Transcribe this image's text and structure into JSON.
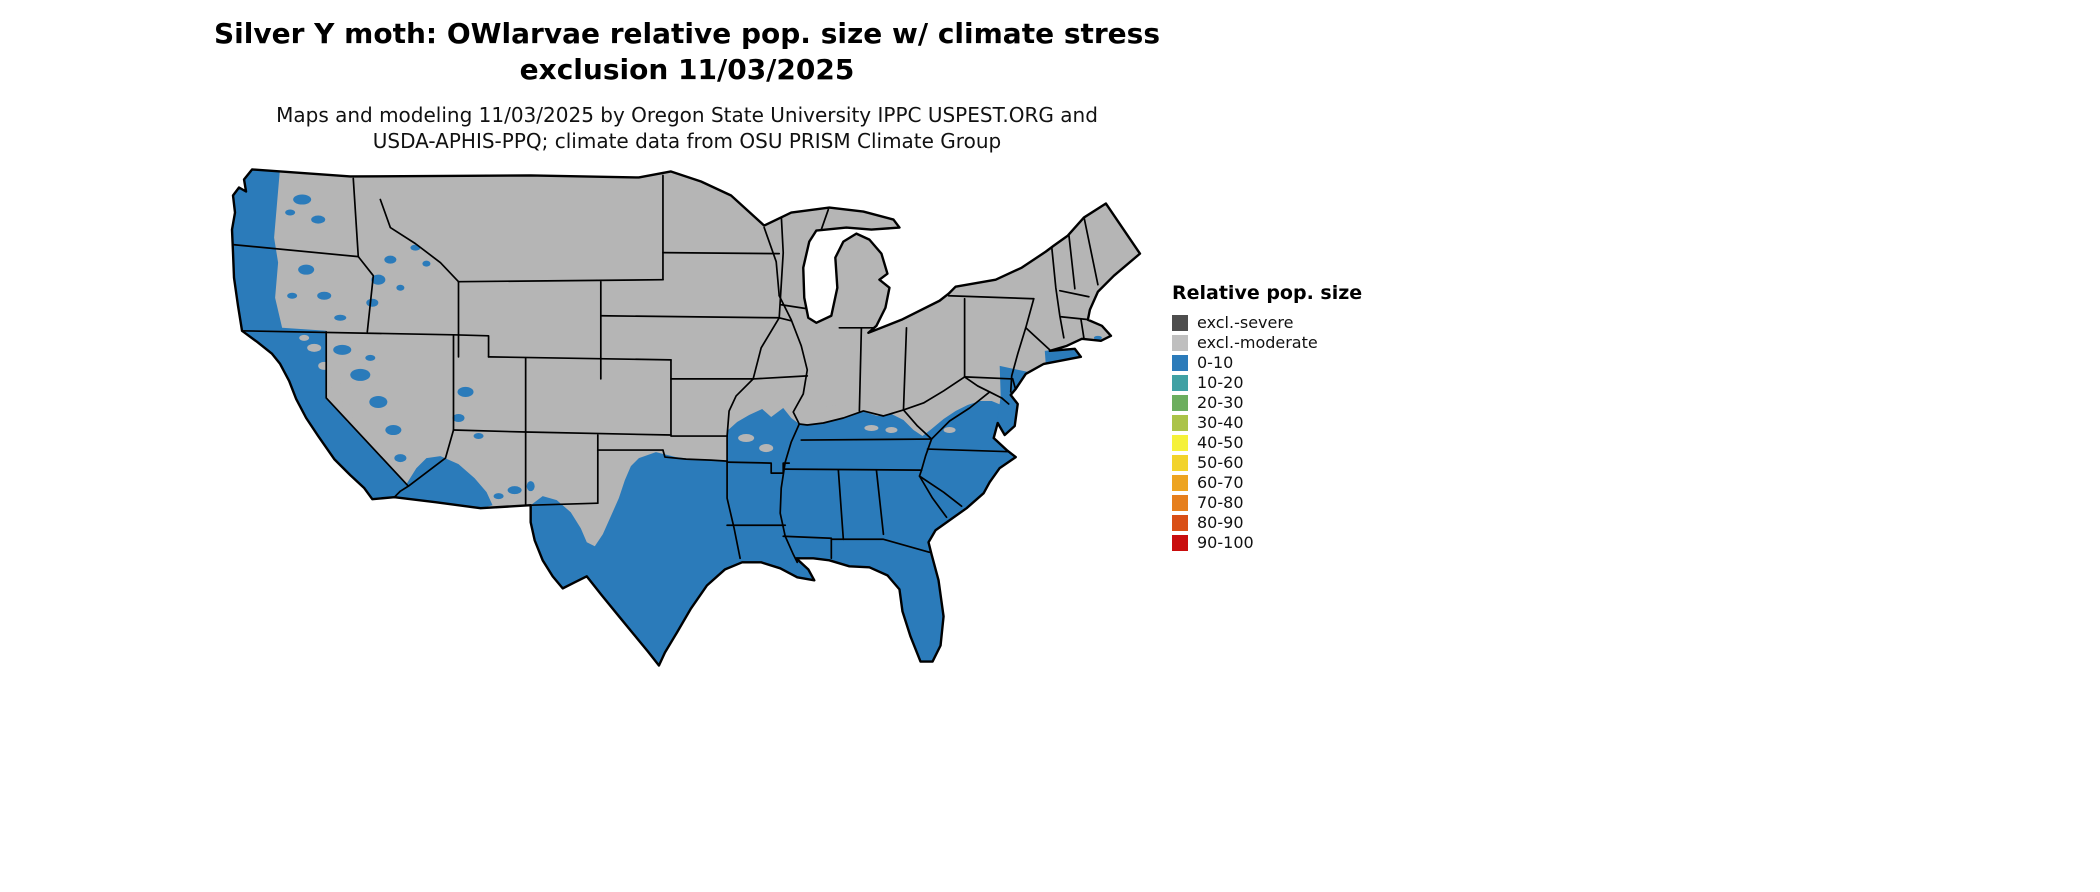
{
  "header": {
    "title_line1": "Silver Y moth: OWlarvae relative pop. size w/ climate stress",
    "title_line2": "exclusion 11/03/2025",
    "subtitle_line1": "Maps and modeling 11/03/2025 by Oregon State University IPPC USPEST.ORG and",
    "subtitle_line2": "USDA-APHIS-PPQ; climate data from OSU PRISM Climate Group"
  },
  "legend": {
    "title": "Relative pop. size",
    "items": [
      {
        "label": "excl.-severe",
        "color": "#4d4d4d"
      },
      {
        "label": "excl.-moderate",
        "color": "#bfbfbf"
      },
      {
        "label": "0-10",
        "color": "#2b7bba"
      },
      {
        "label": "10-20",
        "color": "#40a1a4"
      },
      {
        "label": "20-30",
        "color": "#6cae5e"
      },
      {
        "label": "30-40",
        "color": "#abc348"
      },
      {
        "label": "40-50",
        "color": "#f5f13a"
      },
      {
        "label": "50-60",
        "color": "#f2d32b"
      },
      {
        "label": "60-70",
        "color": "#eda421"
      },
      {
        "label": "70-80",
        "color": "#e67f1d"
      },
      {
        "label": "80-90",
        "color": "#d94f16"
      },
      {
        "label": "90-100",
        "color": "#c90d0d"
      }
    ]
  },
  "map": {
    "colors": {
      "excluded_moderate": "#b5b5b5",
      "population_0_10": "#2b7bba",
      "state_border": "#000000",
      "water": "#ffffff"
    }
  }
}
